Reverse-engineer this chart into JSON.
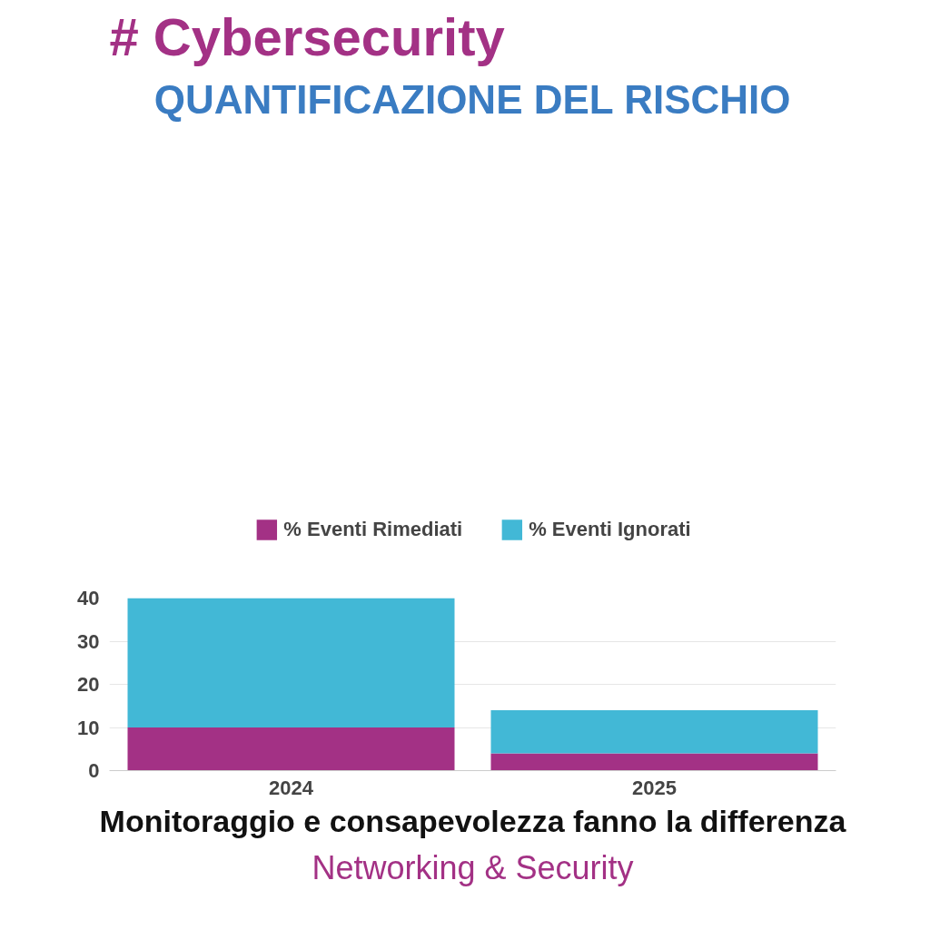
{
  "chart_data": {
    "type": "bar",
    "title": "# Cybersecurity",
    "subtitle": "QUANTIFICAZIONE DEL RISCHIO",
    "categories": [
      "2024",
      "2025"
    ],
    "stacked": true,
    "series": [
      {
        "name": "% Eventi Rimediati",
        "color": "#a33185",
        "values": [
          10,
          4
        ]
      },
      {
        "name": "% Eventi Ignorati",
        "color": "#42b8d6",
        "values": [
          30,
          10
        ]
      }
    ],
    "ylim": [
      0,
      40
    ],
    "yticks": [
      0,
      10,
      20,
      30,
      40
    ],
    "grid": "y",
    "legend": "top",
    "annotations": [
      "Monitoraggio e consapevolezza fanno la differenza",
      "Networking & Security"
    ]
  }
}
